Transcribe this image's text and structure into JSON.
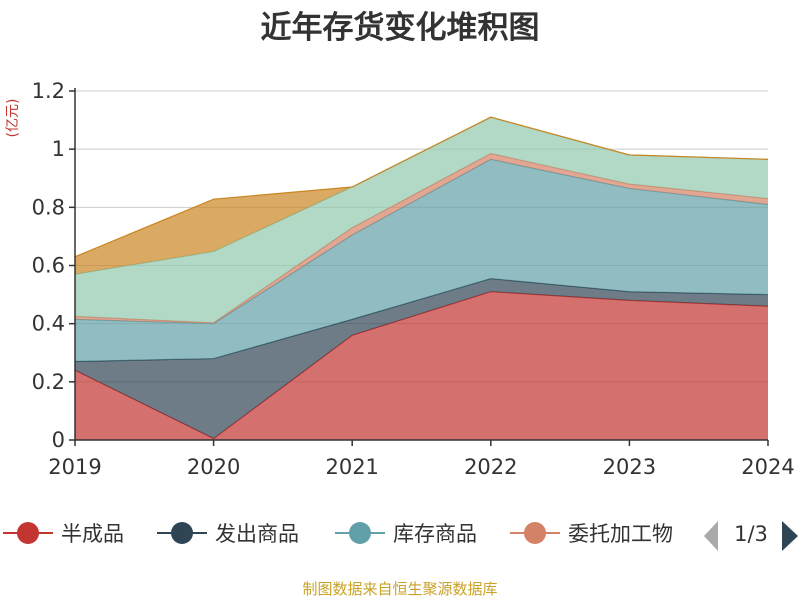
{
  "chart_data": {
    "type": "area",
    "stacked": true,
    "title": "近年存货变化堆积图",
    "ylabel": "(亿元)",
    "xlabel": "",
    "categories": [
      "2019",
      "2020",
      "2021",
      "2022",
      "2023",
      "2024"
    ],
    "ylim": [
      0,
      1.2
    ],
    "yticks": [
      "0",
      "0.2",
      "0.4",
      "0.6",
      "0.8",
      "1",
      "1.2"
    ],
    "grid": true,
    "legend_position": "bottom",
    "legend_page": "1/3",
    "series": [
      {
        "name": "半成品",
        "color": "#c23531",
        "values": [
          0.24,
          0.005,
          0.36,
          0.51,
          0.48,
          0.46
        ]
      },
      {
        "name": "发出商品",
        "color": "#2f4554",
        "values": [
          0.03,
          0.275,
          0.055,
          0.045,
          0.03,
          0.04
        ]
      },
      {
        "name": "库存商品",
        "color": "#61a0a8",
        "values": [
          0.145,
          0.12,
          0.29,
          0.41,
          0.355,
          0.31
        ]
      },
      {
        "name": "委托加工物资",
        "color": "#d48265",
        "values": [
          0.01,
          0.003,
          0.025,
          0.02,
          0.015,
          0.02
        ]
      },
      {
        "name": "",
        "color": "#91c7ae",
        "values": [
          0.145,
          0.245,
          0.14,
          0.125,
          0.1,
          0.135
        ]
      },
      {
        "name": "",
        "color": "#749f83",
        "values": [
          0.0,
          0.0,
          0.0,
          0.0,
          0.0,
          0.0
        ]
      },
      {
        "name": "",
        "color": "#ca8622",
        "values": [
          0.06,
          0.18,
          0.0,
          0.0,
          0.0,
          0.0
        ]
      }
    ]
  },
  "legend_visible": [
    "半成品",
    "发出商品",
    "库存商品",
    "委托加工物"
  ],
  "source_text": "制图数据来自恒生聚源数据库"
}
